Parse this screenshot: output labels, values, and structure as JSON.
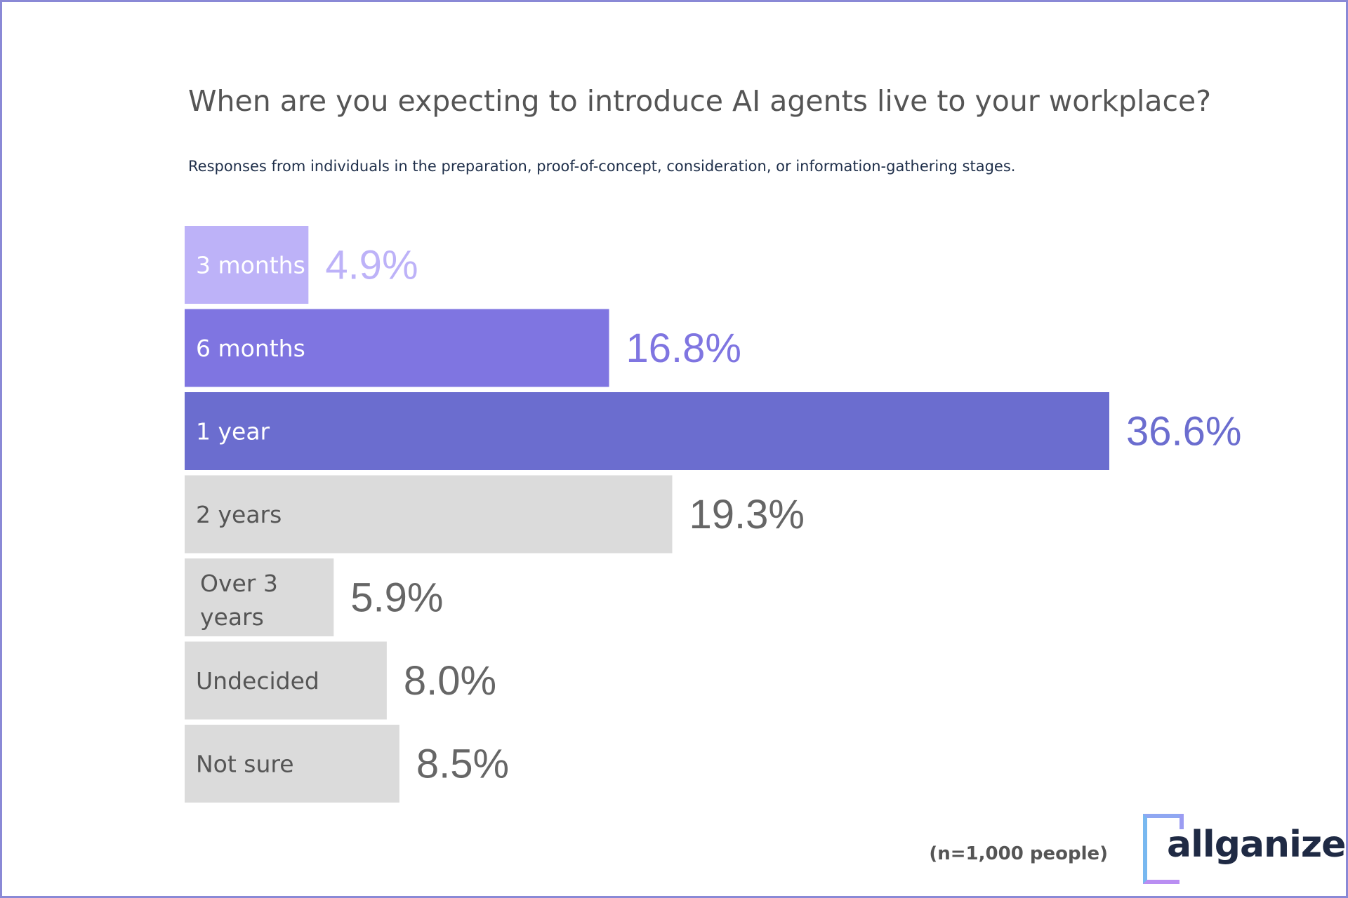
{
  "chart_data": {
    "type": "bar",
    "orientation": "horizontal",
    "title": "When are you expecting to introduce AI agents live to your workplace?",
    "subtitle": "Responses from individuals in the preparation, proof-of-concept, consideration, or information-gathering stages.",
    "categories": [
      "3 months",
      "6 months",
      "1 year",
      "2 years",
      "Over 3 years",
      "Undecided",
      "Not sure"
    ],
    "values": [
      4.9,
      16.8,
      36.6,
      19.3,
      5.9,
      8.0,
      8.5
    ],
    "value_labels": [
      "4.9%",
      "16.8%",
      "36.6%",
      "19.3%",
      "5.9%",
      "8.0%",
      "8.5%"
    ],
    "bar_colors": [
      "#bdb2f8",
      "#7f75e1",
      "#6b6dcf",
      "#dbdbdb",
      "#dbdbdb",
      "#dbdbdb",
      "#dbdbdb"
    ],
    "value_label_colors": [
      "#bdb2f8",
      "#7f75e1",
      "#6b6dcf",
      "#666666",
      "#666666",
      "#666666",
      "#666666"
    ],
    "category_label_colors": [
      "#ffffff",
      "#ffffff",
      "#ffffff",
      "#555555",
      "#555555",
      "#555555",
      "#555555"
    ],
    "unit": "%",
    "xlim": [
      0,
      36.6
    ],
    "grid": false,
    "legend": "none"
  },
  "footer": {
    "sample_note": "(n=1,000 people)",
    "logo_text": "allganize"
  }
}
